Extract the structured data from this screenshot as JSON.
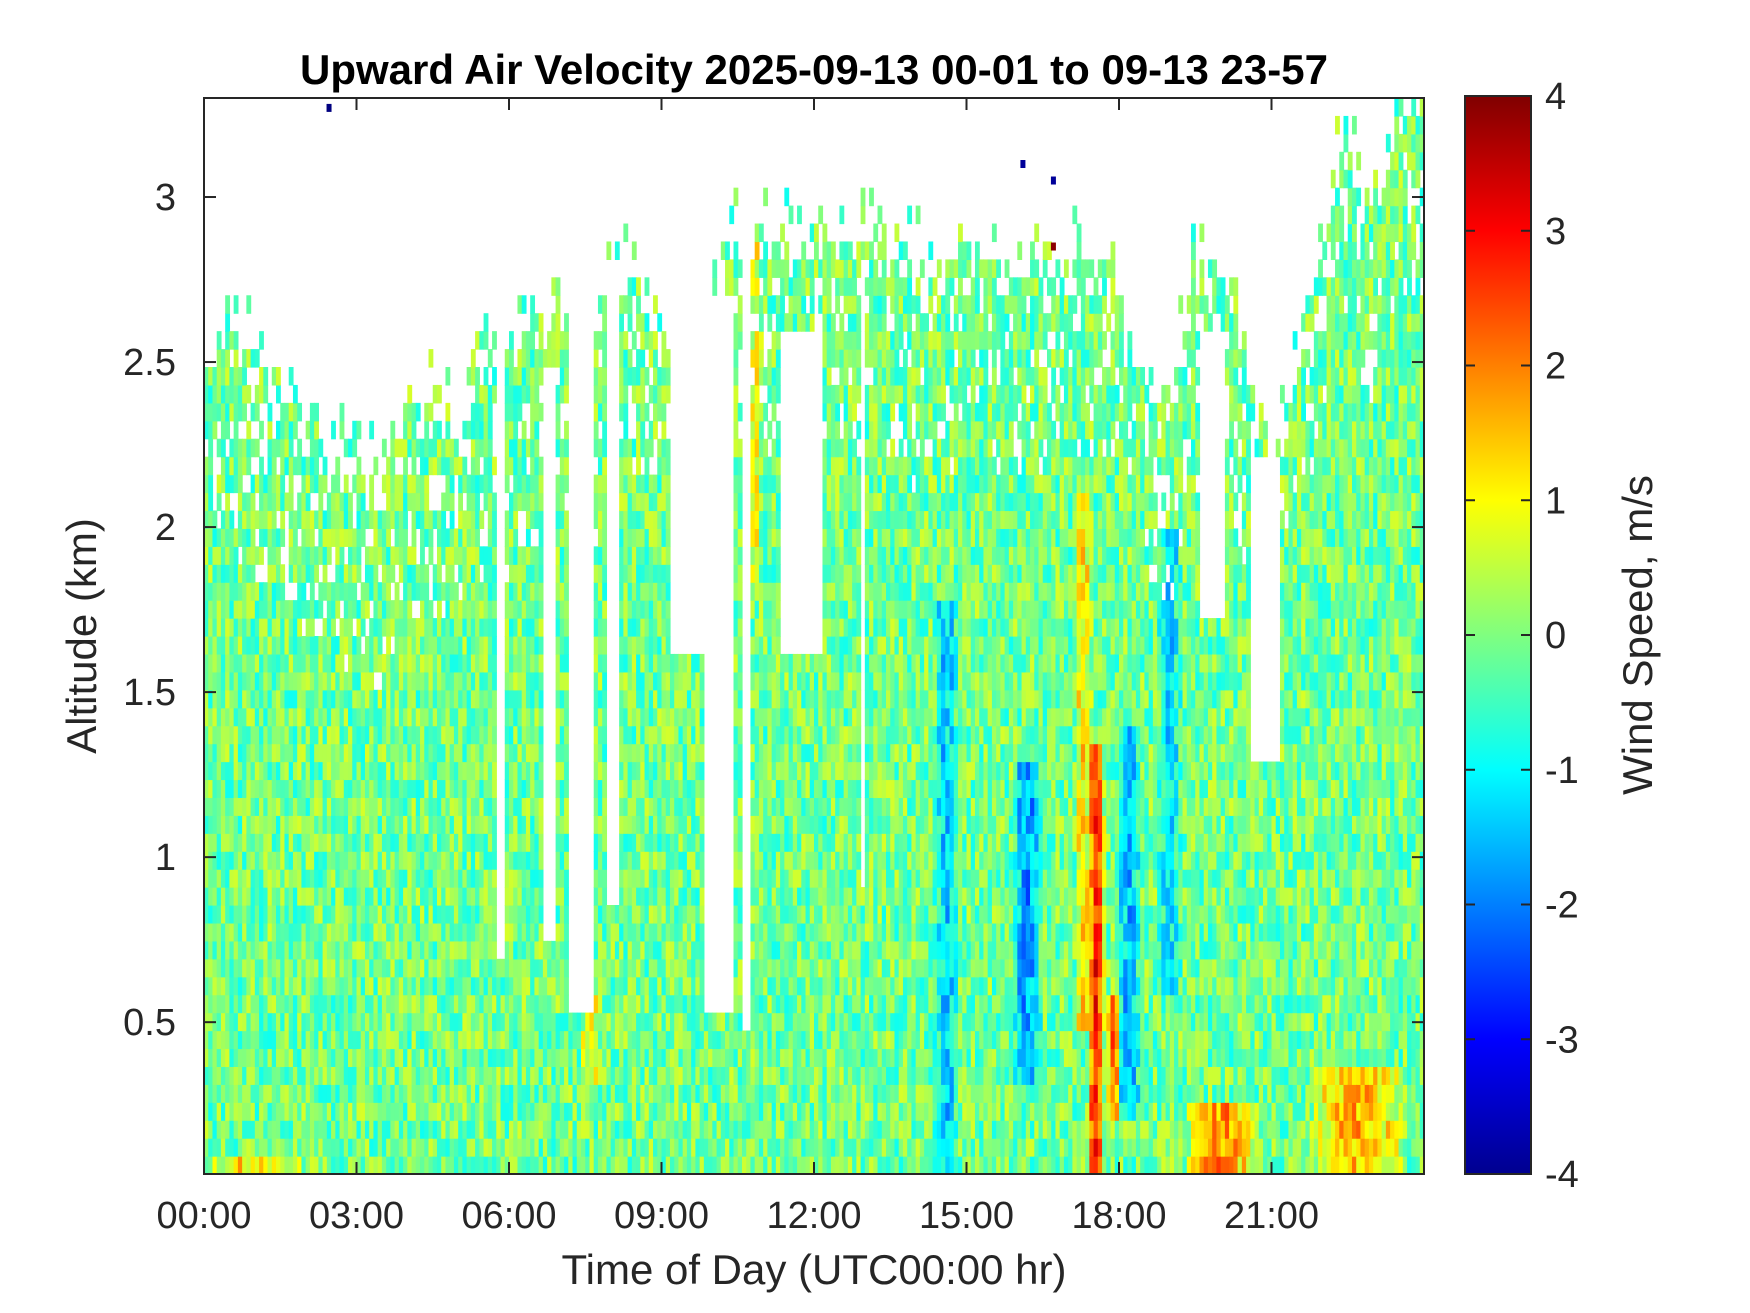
{
  "chart_data": {
    "type": "heatmap",
    "title": "Upward Air Velocity 2025-09-13 00-01 to 09-13 23-57",
    "xlabel": "Time of Day (UTC00:00 hr)",
    "ylabel": "Altitude (km)",
    "colorbar_label": "Wind Speed, m/s",
    "x_ticks": [
      "00:00",
      "03:00",
      "06:00",
      "09:00",
      "12:00",
      "15:00",
      "18:00",
      "21:00"
    ],
    "x_tick_hours": [
      0,
      3,
      6,
      9,
      12,
      15,
      18,
      21
    ],
    "xlim_hours": [
      0,
      24
    ],
    "y_ticks": [
      "0.5",
      "1",
      "1.5",
      "2",
      "2.5",
      "3"
    ],
    "y_tick_values": [
      0.5,
      1,
      1.5,
      2,
      2.5,
      3
    ],
    "ylim": [
      0.04,
      3.3
    ],
    "colorbar_ticks": [
      "-4",
      "-3",
      "-2",
      "-1",
      "0",
      "1",
      "2",
      "3",
      "4"
    ],
    "colorbar_values": [
      -4,
      -3,
      -2,
      -1,
      0,
      1,
      2,
      3,
      4
    ],
    "clim": [
      -4,
      4
    ],
    "colormap": "jet",
    "grid": false,
    "data_top_km": [
      [
        0.0,
        2.45
      ],
      [
        0.5,
        2.6
      ],
      [
        1.0,
        2.45
      ],
      [
        1.5,
        2.35
      ],
      [
        2.0,
        2.3
      ],
      [
        2.5,
        2.2
      ],
      [
        3.0,
        2.15
      ],
      [
        3.5,
        2.1
      ],
      [
        4.0,
        2.25
      ],
      [
        4.5,
        2.35
      ],
      [
        5.0,
        2.3
      ],
      [
        5.5,
        2.45
      ],
      [
        5.8,
        2.45
      ],
      [
        6.0,
        2.5
      ],
      [
        6.5,
        2.5
      ],
      [
        7.0,
        2.6
      ],
      [
        7.5,
        2.4
      ],
      [
        8.0,
        2.85
      ],
      [
        8.5,
        2.7
      ],
      [
        9.0,
        2.55
      ],
      [
        9.5,
        2.4
      ],
      [
        10.0,
        2.7
      ],
      [
        10.5,
        2.85
      ],
      [
        11.0,
        2.85
      ],
      [
        11.5,
        2.85
      ],
      [
        12.0,
        2.85
      ],
      [
        12.5,
        2.85
      ],
      [
        13.0,
        2.8
      ],
      [
        13.5,
        2.8
      ],
      [
        14.0,
        2.75
      ],
      [
        14.5,
        2.75
      ],
      [
        15.0,
        2.75
      ],
      [
        15.5,
        2.75
      ],
      [
        16.0,
        2.75
      ],
      [
        16.5,
        2.75
      ],
      [
        17.0,
        2.75
      ],
      [
        17.5,
        2.75
      ],
      [
        18.0,
        2.7
      ],
      [
        18.5,
        2.4
      ],
      [
        19.0,
        2.3
      ],
      [
        19.5,
        2.75
      ],
      [
        20.0,
        2.75
      ],
      [
        20.5,
        2.4
      ],
      [
        21.0,
        2.2
      ],
      [
        21.5,
        2.4
      ],
      [
        22.0,
        2.9
      ],
      [
        22.5,
        3.2
      ],
      [
        23.0,
        2.9
      ],
      [
        23.5,
        3.2
      ],
      [
        24.0,
        3.3
      ]
    ],
    "data_gaps": [
      {
        "t0": 5.75,
        "t1": 5.95,
        "bottom_km": 0.7,
        "top_km": 2.5
      },
      {
        "t0": 6.65,
        "t1": 6.9,
        "bottom_km": 0.72,
        "top_km": 2.5
      },
      {
        "t0": 7.2,
        "t1": 7.65,
        "bottom_km": 0.55,
        "top_km": 2.6
      },
      {
        "t0": 7.9,
        "t1": 8.15,
        "bottom_km": 0.85,
        "top_km": 2.8
      },
      {
        "t0": 9.8,
        "t1": 10.4,
        "bottom_km": 0.55,
        "top_km": 2.7
      },
      {
        "t0": 10.55,
        "t1": 10.75,
        "bottom_km": 0.5,
        "top_km": 2.8
      },
      {
        "t0": 12.9,
        "t1": 13.0,
        "bottom_km": 0.9,
        "top_km": 2.8
      },
      {
        "t0": 9.2,
        "t1": 9.8,
        "bottom_km": 1.6,
        "top_km": 2.7
      },
      {
        "t0": 11.3,
        "t1": 12.2,
        "bottom_km": 1.6,
        "top_km": 2.6
      },
      {
        "t0": 19.6,
        "t1": 20.1,
        "bottom_km": 1.7,
        "top_km": 2.6
      },
      {
        "t0": 20.6,
        "t1": 21.2,
        "bottom_km": 1.3,
        "top_km": 2.2
      }
    ],
    "features": [
      {
        "t_center": 17.55,
        "t_width": 0.35,
        "bottom_km": 0.04,
        "top_km": 1.35,
        "mean_ms": 2.8
      },
      {
        "t_center": 17.3,
        "t_width": 0.35,
        "bottom_km": 0.5,
        "top_km": 2.1,
        "mean_ms": 1.2
      },
      {
        "t_center": 16.2,
        "t_width": 0.6,
        "bottom_km": 0.3,
        "top_km": 1.3,
        "mean_ms": -1.8
      },
      {
        "t_center": 18.2,
        "t_width": 0.5,
        "bottom_km": 0.2,
        "top_km": 1.4,
        "mean_ms": -1.5
      },
      {
        "t_center": 14.6,
        "t_width": 0.5,
        "bottom_km": 0.04,
        "top_km": 1.8,
        "mean_ms": -1.3
      },
      {
        "t_center": 19.0,
        "t_width": 0.5,
        "bottom_km": 0.6,
        "top_km": 2.0,
        "mean_ms": -1.2
      },
      {
        "t_center": 10.85,
        "t_width": 0.25,
        "bottom_km": 1.8,
        "top_km": 2.85,
        "mean_ms": 1.0
      },
      {
        "t_center": 7.6,
        "t_width": 0.4,
        "bottom_km": 0.3,
        "top_km": 0.6,
        "mean_ms": 1.0
      },
      {
        "t_center": 17.9,
        "t_width": 0.3,
        "bottom_km": 0.2,
        "top_km": 0.6,
        "mean_ms": 2.2
      },
      {
        "t_center": 20.0,
        "t_width": 1.5,
        "bottom_km": 0.04,
        "top_km": 0.25,
        "mean_ms": 1.8
      },
      {
        "t_center": 22.7,
        "t_width": 2.0,
        "bottom_km": 0.04,
        "top_km": 0.35,
        "mean_ms": 1.6
      },
      {
        "t_center": 1.0,
        "t_width": 2.0,
        "bottom_km": 0.04,
        "top_km": 0.12,
        "mean_ms": 1.3
      }
    ],
    "background_mean_ms": -0.35
  }
}
